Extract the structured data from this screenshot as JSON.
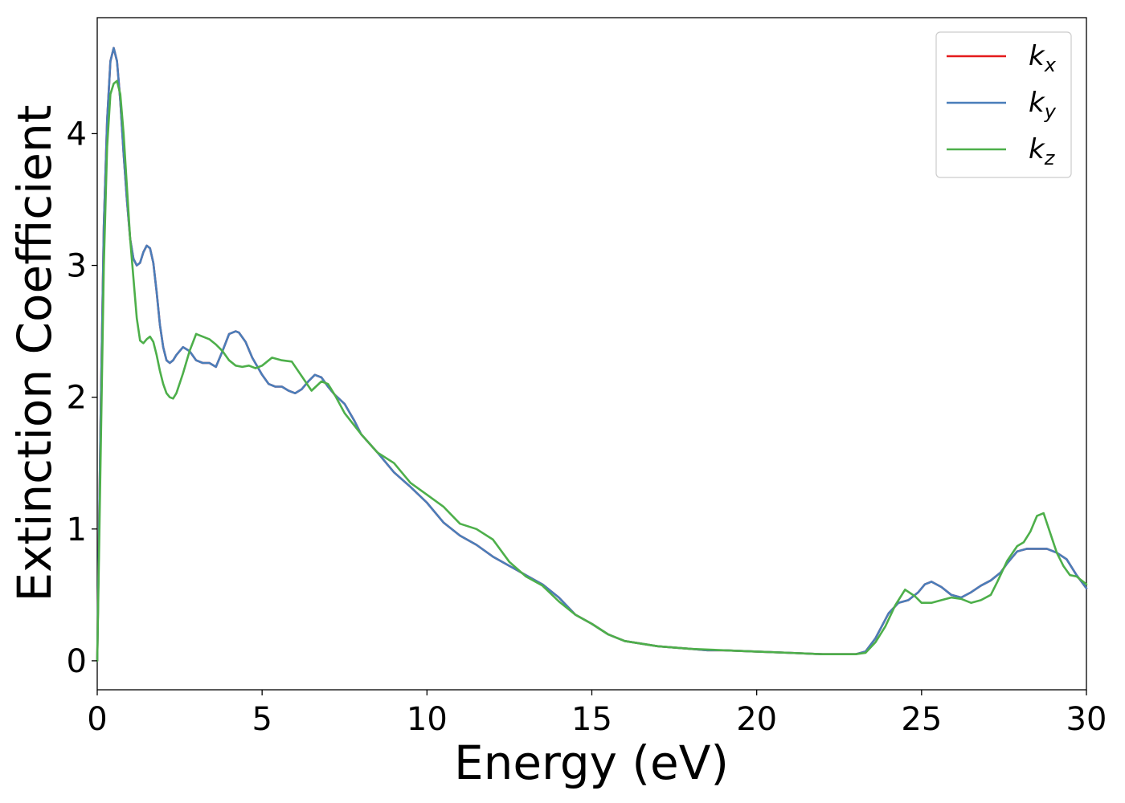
{
  "chart_data": {
    "type": "line",
    "xlabel": "Energy (eV)",
    "ylabel": "Extinction Coefficient",
    "xlim": [
      0,
      30
    ],
    "ylim": [
      -0.22,
      4.88
    ],
    "xticks": [
      0,
      5,
      10,
      15,
      20,
      25,
      30
    ],
    "yticks": [
      0,
      1,
      2,
      3,
      4
    ],
    "grid": false,
    "legend_position": "top-right",
    "series": [
      {
        "name": "k_x",
        "legend_base": "k",
        "legend_sub": "x",
        "color": "#e41a1c",
        "x": [
          0,
          0.1,
          0.2,
          0.3,
          0.4,
          0.5,
          0.6,
          0.7,
          0.8,
          0.9,
          1.0,
          1.1,
          1.2,
          1.3,
          1.4,
          1.5,
          1.6,
          1.7,
          1.8,
          1.9,
          2.0,
          2.1,
          2.2,
          2.3,
          2.4,
          2.6,
          2.8,
          3.0,
          3.2,
          3.4,
          3.6,
          3.8,
          4.0,
          4.2,
          4.3,
          4.5,
          4.7,
          5.0,
          5.2,
          5.4,
          5.6,
          5.8,
          6.0,
          6.2,
          6.4,
          6.6,
          6.8,
          7.0,
          7.2,
          7.5,
          7.8,
          8.0,
          8.5,
          9.0,
          9.5,
          10.0,
          10.5,
          11.0,
          11.5,
          12.0,
          12.5,
          13.0,
          13.5,
          14.0,
          14.5,
          15.0,
          15.5,
          16.0,
          17.0,
          18.0,
          18.5,
          19.0,
          20.0,
          21.0,
          22.0,
          23.0,
          23.3,
          23.6,
          24.0,
          24.3,
          24.6,
          24.9,
          25.1,
          25.3,
          25.6,
          25.9,
          26.2,
          26.5,
          26.8,
          27.1,
          27.4,
          27.6,
          27.9,
          28.2,
          28.5,
          28.8,
          29.1,
          29.4,
          29.7,
          30.0
        ],
        "y": [
          0.0,
          1.8,
          3.3,
          4.1,
          4.55,
          4.65,
          4.55,
          4.25,
          3.85,
          3.5,
          3.2,
          3.05,
          3.0,
          3.02,
          3.1,
          3.15,
          3.13,
          3.02,
          2.8,
          2.55,
          2.38,
          2.28,
          2.26,
          2.28,
          2.32,
          2.38,
          2.35,
          2.28,
          2.26,
          2.26,
          2.23,
          2.35,
          2.48,
          2.5,
          2.49,
          2.42,
          2.3,
          2.17,
          2.1,
          2.08,
          2.08,
          2.05,
          2.03,
          2.06,
          2.12,
          2.17,
          2.15,
          2.08,
          2.02,
          1.95,
          1.82,
          1.72,
          1.58,
          1.43,
          1.32,
          1.2,
          1.05,
          0.95,
          0.88,
          0.79,
          0.72,
          0.65,
          0.58,
          0.48,
          0.35,
          0.28,
          0.2,
          0.15,
          0.11,
          0.09,
          0.08,
          0.08,
          0.07,
          0.06,
          0.05,
          0.05,
          0.07,
          0.17,
          0.36,
          0.44,
          0.46,
          0.52,
          0.58,
          0.6,
          0.56,
          0.5,
          0.48,
          0.52,
          0.57,
          0.61,
          0.67,
          0.74,
          0.83,
          0.85,
          0.85,
          0.85,
          0.82,
          0.77,
          0.65,
          0.55
        ]
      },
      {
        "name": "k_y",
        "legend_base": "k",
        "legend_sub": "y",
        "color": "#4a7eba",
        "x": [
          0,
          0.1,
          0.2,
          0.3,
          0.4,
          0.5,
          0.6,
          0.7,
          0.8,
          0.9,
          1.0,
          1.1,
          1.2,
          1.3,
          1.4,
          1.5,
          1.6,
          1.7,
          1.8,
          1.9,
          2.0,
          2.1,
          2.2,
          2.3,
          2.4,
          2.6,
          2.8,
          3.0,
          3.2,
          3.4,
          3.6,
          3.8,
          4.0,
          4.2,
          4.3,
          4.5,
          4.7,
          5.0,
          5.2,
          5.4,
          5.6,
          5.8,
          6.0,
          6.2,
          6.4,
          6.6,
          6.8,
          7.0,
          7.2,
          7.5,
          7.8,
          8.0,
          8.5,
          9.0,
          9.5,
          10.0,
          10.5,
          11.0,
          11.5,
          12.0,
          12.5,
          13.0,
          13.5,
          14.0,
          14.5,
          15.0,
          15.5,
          16.0,
          17.0,
          18.0,
          18.5,
          19.0,
          20.0,
          21.0,
          22.0,
          23.0,
          23.3,
          23.6,
          24.0,
          24.3,
          24.6,
          24.9,
          25.1,
          25.3,
          25.6,
          25.9,
          26.2,
          26.5,
          26.8,
          27.1,
          27.4,
          27.6,
          27.9,
          28.2,
          28.5,
          28.8,
          29.1,
          29.4,
          29.7,
          30.0
        ],
        "y": [
          0.0,
          1.8,
          3.3,
          4.1,
          4.55,
          4.65,
          4.55,
          4.25,
          3.85,
          3.5,
          3.2,
          3.05,
          3.0,
          3.02,
          3.1,
          3.15,
          3.13,
          3.02,
          2.8,
          2.55,
          2.38,
          2.28,
          2.26,
          2.28,
          2.32,
          2.38,
          2.35,
          2.28,
          2.26,
          2.26,
          2.23,
          2.35,
          2.48,
          2.5,
          2.49,
          2.42,
          2.3,
          2.17,
          2.1,
          2.08,
          2.08,
          2.05,
          2.03,
          2.06,
          2.12,
          2.17,
          2.15,
          2.08,
          2.02,
          1.95,
          1.82,
          1.72,
          1.58,
          1.43,
          1.32,
          1.2,
          1.05,
          0.95,
          0.88,
          0.79,
          0.72,
          0.65,
          0.58,
          0.48,
          0.35,
          0.28,
          0.2,
          0.15,
          0.11,
          0.09,
          0.08,
          0.08,
          0.07,
          0.06,
          0.05,
          0.05,
          0.07,
          0.17,
          0.36,
          0.44,
          0.46,
          0.52,
          0.58,
          0.6,
          0.56,
          0.5,
          0.48,
          0.52,
          0.57,
          0.61,
          0.67,
          0.74,
          0.83,
          0.85,
          0.85,
          0.85,
          0.82,
          0.77,
          0.65,
          0.55
        ]
      },
      {
        "name": "k_z",
        "legend_base": "k",
        "legend_sub": "z",
        "color": "#4daf4a",
        "x": [
          0,
          0.1,
          0.2,
          0.3,
          0.4,
          0.5,
          0.6,
          0.7,
          0.8,
          0.9,
          1.0,
          1.1,
          1.2,
          1.3,
          1.4,
          1.5,
          1.6,
          1.7,
          1.8,
          1.9,
          2.0,
          2.1,
          2.2,
          2.3,
          2.4,
          2.6,
          2.8,
          3.0,
          3.2,
          3.4,
          3.6,
          3.8,
          4.0,
          4.2,
          4.4,
          4.6,
          4.8,
          5.0,
          5.3,
          5.6,
          5.9,
          6.2,
          6.5,
          6.8,
          7.0,
          7.2,
          7.5,
          8.0,
          8.5,
          9.0,
          9.5,
          10.0,
          10.5,
          11.0,
          11.5,
          12.0,
          12.5,
          13.0,
          13.5,
          14.0,
          14.5,
          15.0,
          15.5,
          16.0,
          17.0,
          18.0,
          19.0,
          20.0,
          21.0,
          22.0,
          23.0,
          23.3,
          23.6,
          23.9,
          24.2,
          24.5,
          24.8,
          25.0,
          25.3,
          25.6,
          25.9,
          26.2,
          26.5,
          26.8,
          27.1,
          27.3,
          27.6,
          27.9,
          28.1,
          28.3,
          28.5,
          28.7,
          28.9,
          29.1,
          29.3,
          29.5,
          29.7,
          30.0
        ],
        "y": [
          0.0,
          1.5,
          3.0,
          3.9,
          4.3,
          4.38,
          4.4,
          4.3,
          4.0,
          3.6,
          3.2,
          2.9,
          2.6,
          2.43,
          2.41,
          2.44,
          2.46,
          2.42,
          2.32,
          2.2,
          2.1,
          2.03,
          2.0,
          1.99,
          2.03,
          2.18,
          2.35,
          2.48,
          2.46,
          2.44,
          2.4,
          2.35,
          2.28,
          2.24,
          2.23,
          2.24,
          2.22,
          2.24,
          2.3,
          2.28,
          2.27,
          2.16,
          2.05,
          2.12,
          2.1,
          2.02,
          1.88,
          1.72,
          1.58,
          1.5,
          1.35,
          1.26,
          1.17,
          1.04,
          1.0,
          0.92,
          0.75,
          0.64,
          0.57,
          0.45,
          0.35,
          0.28,
          0.2,
          0.15,
          0.11,
          0.09,
          0.08,
          0.07,
          0.06,
          0.05,
          0.05,
          0.06,
          0.14,
          0.26,
          0.42,
          0.54,
          0.49,
          0.44,
          0.44,
          0.46,
          0.48,
          0.47,
          0.44,
          0.46,
          0.5,
          0.6,
          0.76,
          0.87,
          0.9,
          0.98,
          1.1,
          1.12,
          0.97,
          0.82,
          0.72,
          0.65,
          0.64,
          0.58
        ]
      }
    ]
  }
}
